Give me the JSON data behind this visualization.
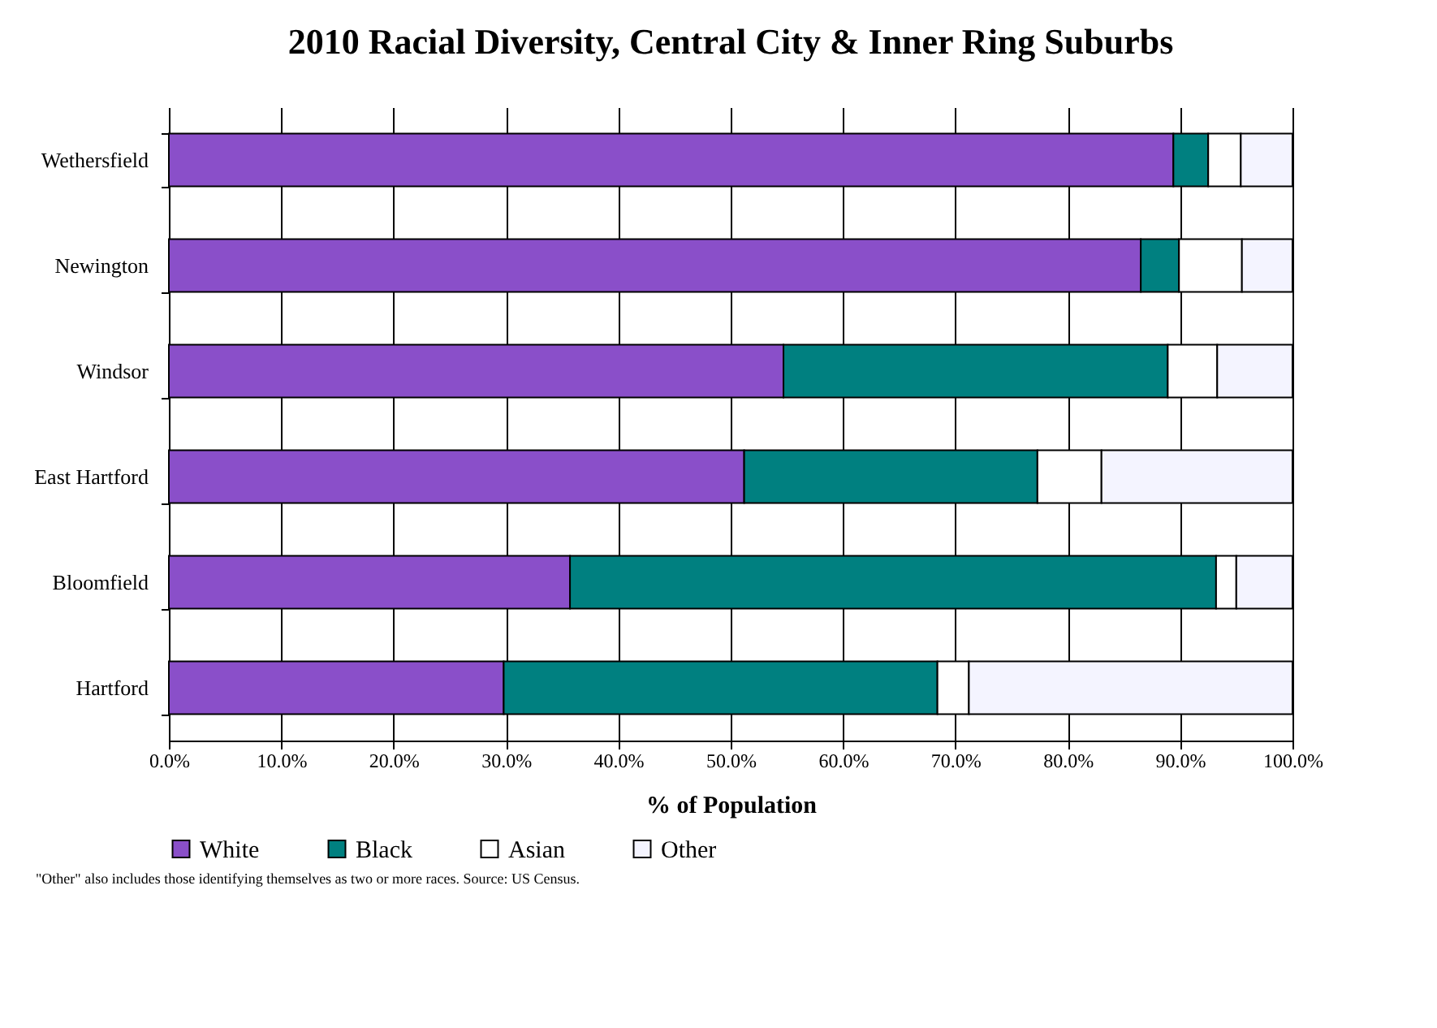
{
  "chart_data": {
    "type": "bar",
    "orientation": "horizontal",
    "stacked": true,
    "title": "2010 Racial Diversity, Central City &  Inner Ring Suburbs",
    "xlabel": "% of Population",
    "categories": [
      "Wethersfield",
      "Newington",
      "Windsor",
      "East Hartford",
      "Bloomfield",
      "Hartford"
    ],
    "series": [
      {
        "name": "White",
        "color": "#8a4fc9",
        "values": [
          89.4,
          86.5,
          54.7,
          51.2,
          35.7,
          29.8
        ]
      },
      {
        "name": "Black",
        "color": "#008080",
        "values": [
          3.1,
          3.4,
          34.2,
          26.1,
          57.5,
          38.6
        ]
      },
      {
        "name": "Asian",
        "color": "#ffffff",
        "values": [
          2.9,
          5.6,
          4.4,
          5.7,
          1.8,
          2.8
        ]
      },
      {
        "name": "Other",
        "color": "#f4f4ff",
        "values": [
          4.6,
          4.5,
          6.7,
          17.0,
          5.0,
          28.8
        ]
      }
    ],
    "xlim": [
      0,
      100
    ],
    "xticks": [
      {
        "value": 0,
        "label": "0.0%"
      },
      {
        "value": 10,
        "label": "10.0%"
      },
      {
        "value": 20,
        "label": "20.0%"
      },
      {
        "value": 30,
        "label": "30.0%"
      },
      {
        "value": 40,
        "label": "40.0%"
      },
      {
        "value": 50,
        "label": "50.0%"
      },
      {
        "value": 60,
        "label": "60.0%"
      },
      {
        "value": 70,
        "label": "70.0%"
      },
      {
        "value": 80,
        "label": "80.0%"
      },
      {
        "value": 90,
        "label": "90.0%"
      },
      {
        "value": 100,
        "label": "100.0%"
      }
    ],
    "grid": "x",
    "legend": "bottom",
    "annotations": [
      "\"Other\" also includes those identifying themselves as two or more races. Source: US Census."
    ]
  }
}
